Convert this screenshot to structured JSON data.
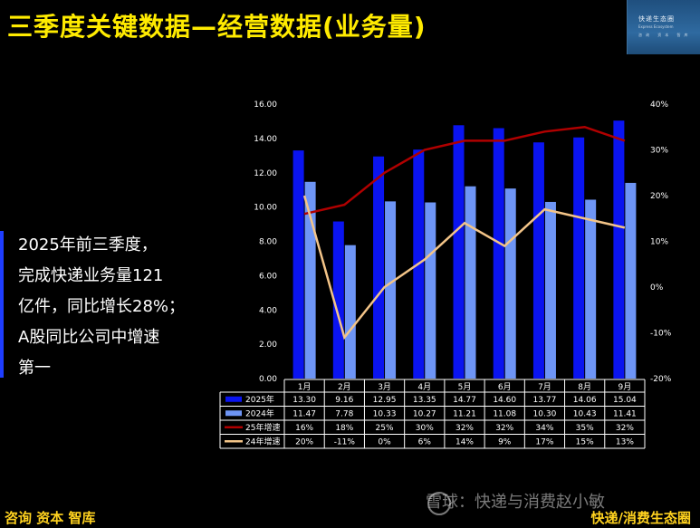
{
  "slide": {
    "title": "三季度关键数据—经营数据(业务量)",
    "summary_lines": [
      "2025年前三季度，",
      "完成快递业务量121",
      "亿件，同比增长28%；",
      "A股同比公司中增速",
      "第一"
    ],
    "footer_left": "咨询  资本  智库",
    "footer_right": "快递/消费生态圈",
    "watermark": "雪球：快递与消费赵小敏",
    "logo": {
      "line1": "快递生态圈",
      "line2": "Express Ecosystem",
      "line3": "咨询 资本 智库"
    }
  },
  "chart_data": {
    "type": "bar",
    "title": "",
    "categories": [
      "1月",
      "2月",
      "3月",
      "4月",
      "5月",
      "6月",
      "7月",
      "8月",
      "9月"
    ],
    "series": [
      {
        "name": "2025年",
        "kind": "bar",
        "axis": "left",
        "color": "#0A14F0",
        "values": [
          13.3,
          9.16,
          12.95,
          13.35,
          14.77,
          14.6,
          13.77,
          14.06,
          15.04
        ],
        "labels": [
          "13.30",
          "9.16",
          "12.95",
          "13.35",
          "14.77",
          "14.60",
          "13.77",
          "14.06",
          "15.04"
        ]
      },
      {
        "name": "2024年",
        "kind": "bar",
        "axis": "left",
        "color": "#6E95F5",
        "values": [
          11.47,
          7.78,
          10.33,
          10.27,
          11.21,
          11.08,
          10.3,
          10.43,
          11.41
        ],
        "labels": [
          "11.47",
          "7.78",
          "10.33",
          "10.27",
          "11.21",
          "11.08",
          "10.30",
          "10.43",
          "11.41"
        ]
      },
      {
        "name": "25年增速",
        "kind": "line",
        "axis": "right",
        "color": "#B00000",
        "values": [
          16,
          18,
          25,
          30,
          32,
          32,
          34,
          35,
          32
        ],
        "labels": [
          "16%",
          "18%",
          "25%",
          "30%",
          "32%",
          "32%",
          "34%",
          "35%",
          "32%"
        ]
      },
      {
        "name": "24年增速",
        "kind": "line",
        "axis": "right",
        "color": "#F3C488",
        "values": [
          20,
          -11,
          0,
          6,
          14,
          9,
          17,
          15,
          13
        ],
        "labels": [
          "20%",
          "-11%",
          "0%",
          "6%",
          "14%",
          "9%",
          "17%",
          "15%",
          "13%"
        ]
      }
    ],
    "y_left": {
      "min": 0,
      "max": 16,
      "ticks": [
        "0.00",
        "2.00",
        "4.00",
        "6.00",
        "8.00",
        "10.00",
        "12.00",
        "14.00",
        "16.00"
      ]
    },
    "y_right": {
      "min": -20,
      "max": 40,
      "ticks": [
        "-20%",
        "-10%",
        "0%",
        "10%",
        "20%",
        "30%",
        "40%"
      ]
    },
    "grid": false,
    "legend": "data-table-below"
  }
}
